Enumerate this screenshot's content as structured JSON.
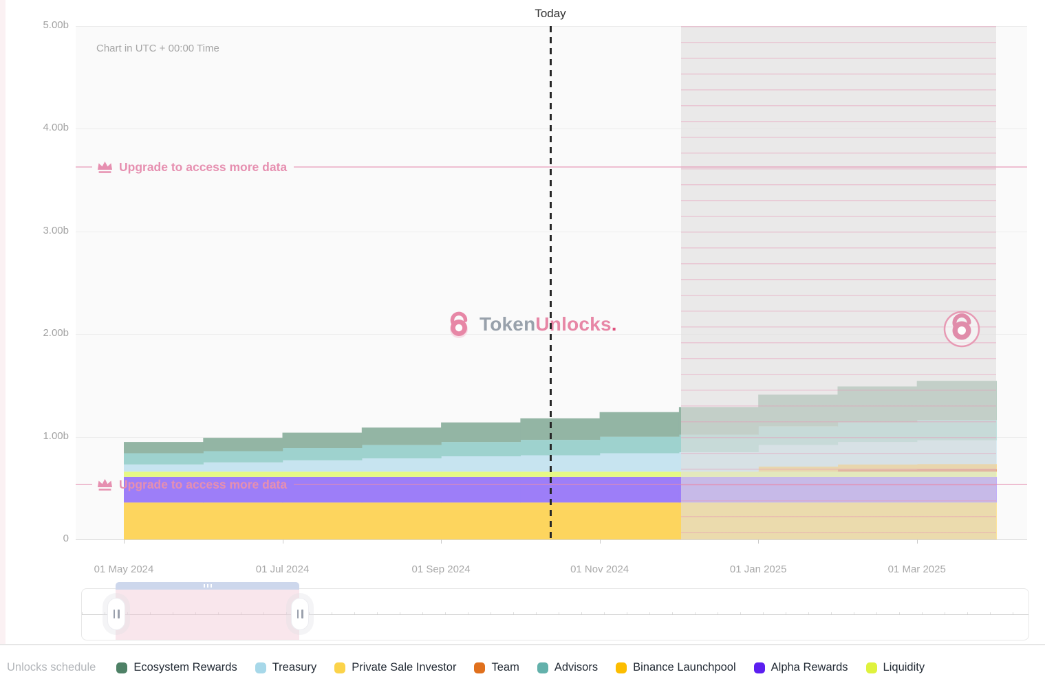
{
  "header": {
    "today_label": "Today",
    "utc_note": "Chart in UTC + 00:00 Time"
  },
  "watermark": {
    "part1": "Token",
    "part2": "Unlocks",
    "dot": ".",
    "icon_color": "#e787a6"
  },
  "paywall": {
    "upgrade_text": "Upgrade to access more data",
    "accent_color": "#e68fb0"
  },
  "y_axis": {
    "ticks": [
      {
        "label": "5.00b",
        "value": 5
      },
      {
        "label": "4.00b",
        "value": 4
      },
      {
        "label": "3.00b",
        "value": 3
      },
      {
        "label": "2.00b",
        "value": 2
      },
      {
        "label": "1.00b",
        "value": 1
      },
      {
        "label": "0",
        "value": 0
      }
    ]
  },
  "x_axis": {
    "ticks": [
      "01 May 2024",
      "01 Jul 2024",
      "01 Sep 2024",
      "01 Nov 2024",
      "01 Jan 2025",
      "01 Mar 2025"
    ],
    "labeled_month_indices": [
      0,
      2,
      4,
      6,
      8,
      10
    ]
  },
  "legend": {
    "title": "Unlocks schedule",
    "items": [
      {
        "label": "Ecosystem Rewards",
        "color": "#4e8166"
      },
      {
        "label": "Treasury",
        "color": "#a7d8e9"
      },
      {
        "label": "Private Sale Investor",
        "color": "#fbd34a"
      },
      {
        "label": "Team",
        "color": "#e0701d"
      },
      {
        "label": "Advisors",
        "color": "#63b1ab"
      },
      {
        "label": "Binance Launchpool",
        "color": "#fcbd00"
      },
      {
        "label": "Alpha Rewards",
        "color": "#5c1ff0"
      },
      {
        "label": "Liquidity",
        "color": "#dff23d"
      }
    ]
  },
  "chart_data": {
    "type": "area",
    "subtype": "stacked-step-monthly",
    "title": "Unlocks schedule",
    "x": [
      "2024-05",
      "2024-06",
      "2024-07",
      "2024-08",
      "2024-09",
      "2024-10",
      "2024-11",
      "2024-12",
      "2025-01",
      "2025-02",
      "2025-03"
    ],
    "unit": "billions of tokens",
    "ylim": [
      0,
      5
    ],
    "grid": true,
    "today_position": "2024-10-15",
    "paywall_start": "2024-12-01",
    "series_bottom_to_top": [
      {
        "name": "Private Sale Investor",
        "area_color": "#fdd55e",
        "values": [
          0.36,
          0.36,
          0.36,
          0.36,
          0.36,
          0.36,
          0.36,
          0.36,
          0.36,
          0.36,
          0.36
        ]
      },
      {
        "name": "Alpha Rewards",
        "area_color": "#9d7ef8",
        "values": [
          0.25,
          0.25,
          0.25,
          0.25,
          0.25,
          0.25,
          0.25,
          0.25,
          0.25,
          0.25,
          0.25
        ]
      },
      {
        "name": "Liquidity",
        "area_color": "#e6f885",
        "values": [
          0.05,
          0.05,
          0.05,
          0.05,
          0.05,
          0.05,
          0.05,
          0.05,
          0.05,
          0.05,
          0.05
        ]
      },
      {
        "name": "Team",
        "area_color": "#e2743c",
        "values": [
          0,
          0,
          0,
          0,
          0,
          0,
          0,
          0,
          0,
          0.02,
          0.025
        ]
      },
      {
        "name": "Binance Launchpool",
        "area_color": "#f3c95e",
        "values": [
          0,
          0,
          0,
          0,
          0,
          0,
          0,
          0,
          0.05,
          0.05,
          0.05
        ]
      },
      {
        "name": "Treasury",
        "area_color": "#c7e4f0",
        "values": [
          0.07,
          0.09,
          0.11,
          0.13,
          0.15,
          0.16,
          0.18,
          0.19,
          0.21,
          0.22,
          0.23
        ]
      },
      {
        "name": "Advisors",
        "area_color": "#9ed2ce",
        "values": [
          0.11,
          0.11,
          0.12,
          0.13,
          0.14,
          0.15,
          0.16,
          0.17,
          0.18,
          0.19,
          0.2
        ]
      },
      {
        "name": "Ecosystem Rewards",
        "area_color": "#93b5a4",
        "values": [
          0.11,
          0.13,
          0.15,
          0.17,
          0.19,
          0.21,
          0.24,
          0.27,
          0.31,
          0.35,
          0.38
        ]
      }
    ]
  }
}
